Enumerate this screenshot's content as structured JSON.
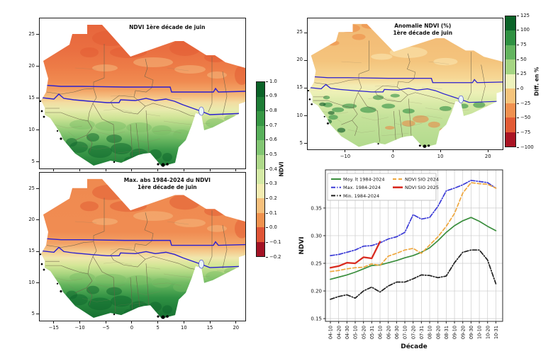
{
  "maps": {
    "ndvi": {
      "title": "NDVI 1ère décade de juin",
      "yticks": [
        25,
        20,
        15,
        10,
        5
      ]
    },
    "maxabs": {
      "title": "Max. abs 1984-2024 du NDVI",
      "subtitle": "1ère décade de juin",
      "yticks": [
        25,
        20,
        15,
        10,
        5
      ],
      "xticks": [
        -15,
        -10,
        -5,
        0,
        5,
        10,
        15,
        20
      ]
    },
    "anomaly": {
      "title": "Anomalie NDVI (%)",
      "subtitle": "1ère décade de juin",
      "yticks": [
        25,
        20,
        15,
        10,
        5
      ],
      "xticks": [
        -10,
        0,
        10,
        20
      ]
    }
  },
  "colorbars": {
    "ndvi": {
      "label": "NDVI",
      "ticks": [
        1.0,
        0.9,
        0.8,
        0.7,
        0.6,
        0.5,
        0.4,
        0.3,
        0.2,
        0.1,
        0.0,
        -0.1,
        -0.2
      ],
      "colors": [
        "#0b6328",
        "#1e7d36",
        "#379845",
        "#58b05b",
        "#82c673",
        "#aed98a",
        "#d5eaa6",
        "#f3ecb1",
        "#f6c07c",
        "#f0924e",
        "#e05536",
        "#a31325"
      ]
    },
    "diff": {
      "label": "Diff. en %",
      "ticks": [
        125,
        100,
        75,
        50,
        25,
        0,
        -25,
        -50,
        -75,
        -100
      ],
      "colors": [
        "#0b6328",
        "#2f9142",
        "#63b45f",
        "#a5d583",
        "#eef3bc",
        "#f5c47c",
        "#f09150",
        "#e25b35",
        "#aa1524"
      ]
    }
  },
  "chart_data": {
    "type": "line",
    "title": "",
    "xlabel": "Décade",
    "ylabel": "NDVI",
    "x": [
      "04-10",
      "04-20",
      "04-30",
      "05-10",
      "05-20",
      "05-31",
      "06-10",
      "06-20",
      "06-30",
      "07-10",
      "07-20",
      "07-31",
      "08-10",
      "08-20",
      "08-31",
      "09-10",
      "09-20",
      "09-30",
      "10-10",
      "10-20",
      "10-31"
    ],
    "yticks": [
      0.15,
      0.2,
      0.25,
      0.3,
      0.35
    ],
    "ylim": [
      0.145,
      0.419
    ],
    "grid": true,
    "legend_position": "upper left",
    "legend_columns": [
      [
        0,
        1,
        2
      ],
      [
        3,
        4
      ]
    ],
    "series": [
      {
        "name": "Moy. lt 1984-2024",
        "color": "#3a8e3d",
        "dash": "solid",
        "width": 1.7,
        "values": [
          0.221,
          0.225,
          0.229,
          0.234,
          0.24,
          0.246,
          0.247,
          0.251,
          0.255,
          0.26,
          0.264,
          0.27,
          0.278,
          0.291,
          0.306,
          0.318,
          0.327,
          0.333,
          0.326,
          0.317,
          0.309
        ]
      },
      {
        "name": "Max. 1984-2024",
        "color": "#3b3bd6",
        "dash": "dashdot",
        "width": 1.7,
        "values": [
          0.264,
          0.266,
          0.27,
          0.274,
          0.281,
          0.282,
          0.287,
          0.294,
          0.298,
          0.306,
          0.338,
          0.33,
          0.333,
          0.353,
          0.381,
          0.386,
          0.392,
          0.4,
          0.398,
          0.396,
          0.386
        ]
      },
      {
        "name": "Min. 1984-2024",
        "color": "#202020",
        "dash": "dashdot",
        "width": 1.7,
        "values": [
          0.185,
          0.19,
          0.193,
          0.187,
          0.2,
          0.207,
          0.198,
          0.209,
          0.216,
          0.216,
          0.222,
          0.229,
          0.228,
          0.224,
          0.227,
          0.251,
          0.27,
          0.274,
          0.274,
          0.256,
          0.213
        ]
      },
      {
        "name": "NDVI SIO 2024",
        "color": "#efa73e",
        "dash": "dashed",
        "width": 1.7,
        "values": [
          0.235,
          0.237,
          0.24,
          0.242,
          0.243,
          0.249,
          0.246,
          0.263,
          0.268,
          0.274,
          0.277,
          0.268,
          0.283,
          0.298,
          0.317,
          0.34,
          0.377,
          0.396,
          0.394,
          0.393,
          0.386
        ]
      },
      {
        "name": "NDVI SIO 2025",
        "color": "#d92b20",
        "dash": "solid",
        "width": 2.3,
        "values": [
          0.242,
          0.245,
          0.251,
          0.25,
          0.261,
          0.259,
          0.289,
          null,
          null,
          null,
          null,
          null,
          null,
          null,
          null,
          null,
          null,
          null,
          null,
          null,
          null
        ]
      }
    ]
  }
}
